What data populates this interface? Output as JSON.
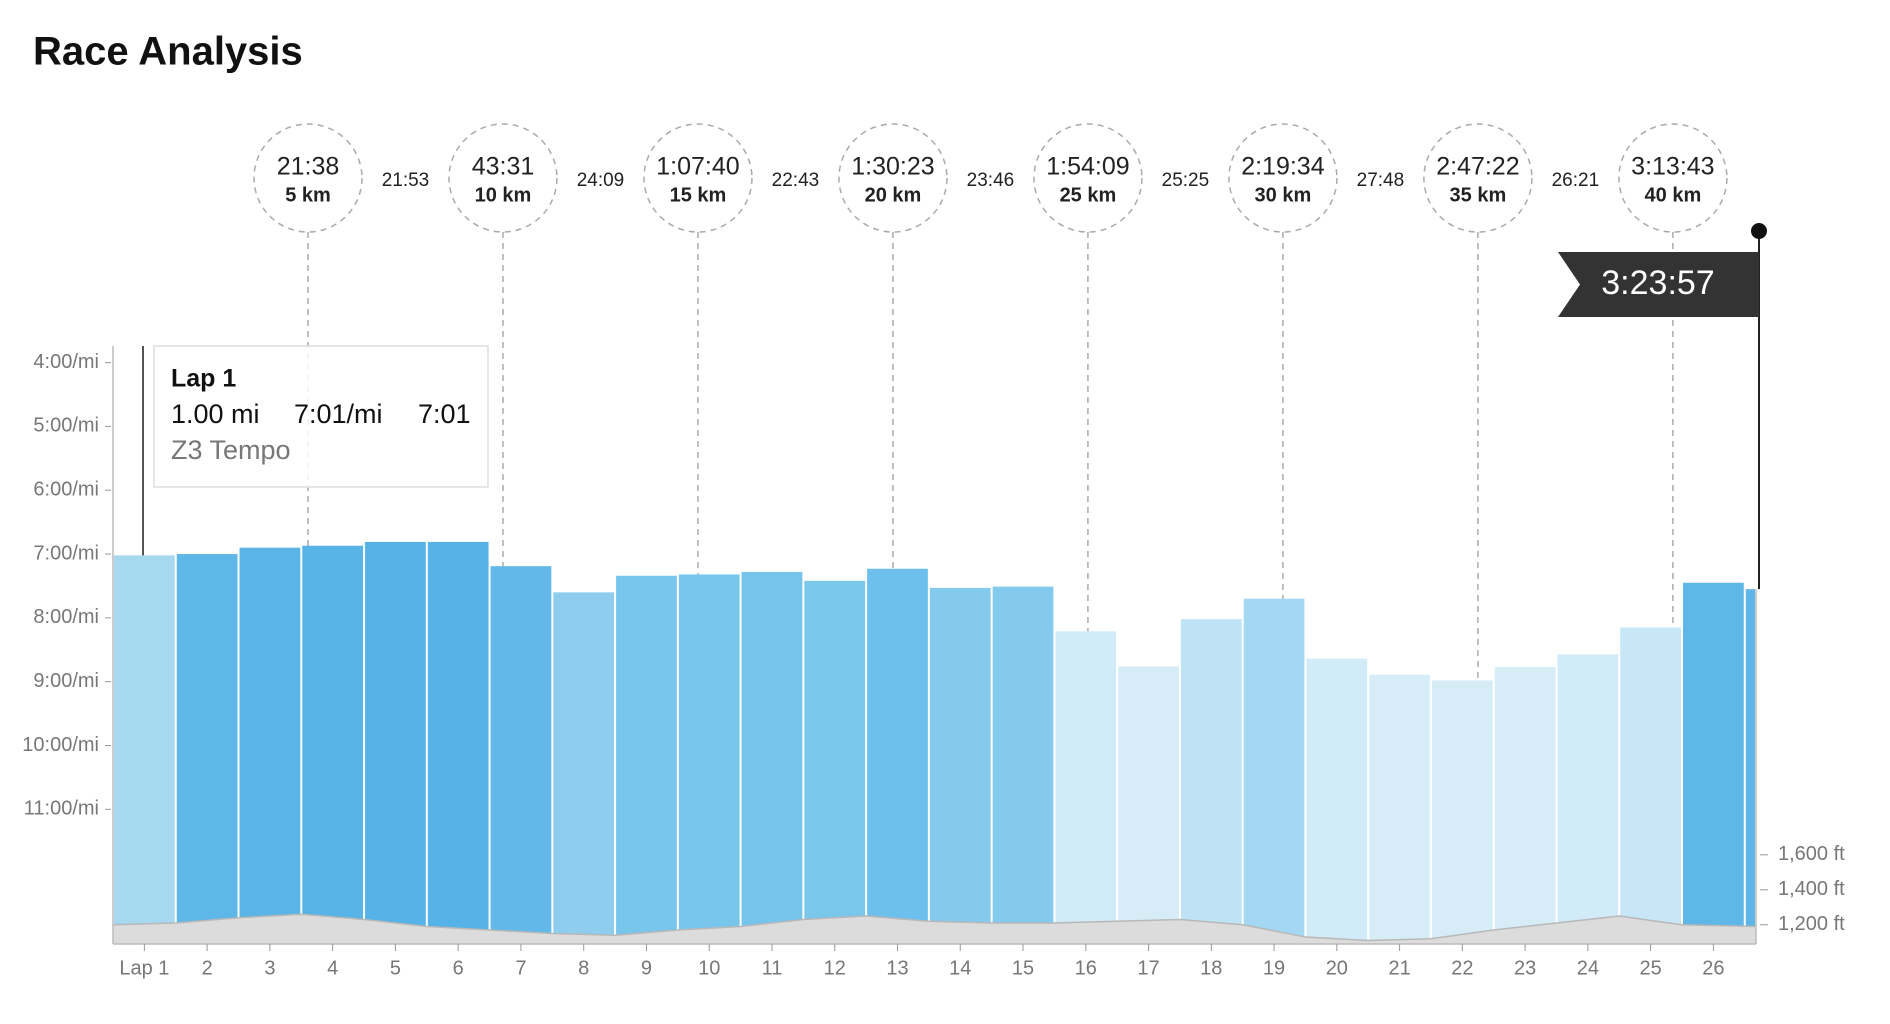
{
  "chart_data": {
    "type": "bar",
    "title": "Race Analysis",
    "categories": [
      "Lap 1",
      "2",
      "3",
      "4",
      "5",
      "6",
      "7",
      "8",
      "9",
      "10",
      "11",
      "12",
      "13",
      "14",
      "15",
      "16",
      "17",
      "18",
      "19",
      "20",
      "21",
      "22",
      "23",
      "24",
      "25",
      "26",
      null
    ],
    "series": [
      {
        "name": "Pace",
        "values": [
          7.02,
          7.0,
          6.9,
          6.87,
          6.81,
          6.81,
          7.19,
          7.6,
          7.34,
          7.32,
          7.28,
          7.42,
          7.23,
          7.53,
          7.51,
          8.21,
          8.76,
          8.02,
          7.7,
          8.64,
          8.89,
          8.98,
          8.77,
          8.57,
          8.15,
          7.45,
          7.55
        ],
        "colors": [
          "#a6d9f0",
          "#5fb7e7",
          "#5ab5e6",
          "#58b4e6",
          "#56b3e7",
          "#56b3e7",
          "#62b8e8",
          "#8fcdee",
          "#78c6ec",
          "#78c6ec",
          "#74c4ec",
          "#7ac7ec",
          "#6cc0eb",
          "#84caed",
          "#84caed",
          "#d2ebf8",
          "#d6edf8",
          "#bde3f5",
          "#a4d8f2",
          "#d2ebf8",
          "#d6edf8",
          "#d6edf8",
          "#d6edf8",
          "#d2ebf8",
          "#c7e7f7",
          "#5fb7e7",
          "#5fb7e7"
        ]
      },
      {
        "name": "Elevation",
        "axis": "y2",
        "color": "#dcdcdc",
        "values": [
          1200,
          1210,
          1240,
          1260,
          1230,
          1190,
          1170,
          1150,
          1140,
          1170,
          1190,
          1230,
          1250,
          1220,
          1210,
          1210,
          1220,
          1230,
          1200,
          1130,
          1110,
          1120,
          1170,
          1210,
          1250,
          1200,
          1190
        ]
      }
    ],
    "ylim": [
      3.74,
      13.11
    ],
    "yticks": [
      {
        "value": 4,
        "label": "4:00/mi"
      },
      {
        "value": 5,
        "label": "5:00/mi"
      },
      {
        "value": 6,
        "label": "6:00/mi"
      },
      {
        "value": 7,
        "label": "7:00/mi"
      },
      {
        "value": 8,
        "label": "8:00/mi"
      },
      {
        "value": 9,
        "label": "9:00/mi"
      },
      {
        "value": 10,
        "label": "10:00/mi"
      },
      {
        "value": 11,
        "label": "11:00/mi"
      }
    ],
    "y2lim": [
      1090,
      4510
    ],
    "y2ticks": [
      {
        "value": 1200,
        "label": "1,200 ft"
      },
      {
        "value": 1400,
        "label": "1,400 ft"
      },
      {
        "value": 1600,
        "label": "1,600 ft"
      }
    ],
    "splits": [
      {
        "time": "21:38",
        "label": "5 km"
      },
      {
        "time": "43:31",
        "label": "10 km"
      },
      {
        "time": "1:07:40",
        "label": "15 km"
      },
      {
        "time": "1:30:23",
        "label": "20 km"
      },
      {
        "time": "1:54:09",
        "label": "25 km"
      },
      {
        "time": "2:19:34",
        "label": "30 km"
      },
      {
        "time": "2:47:22",
        "label": "35 km"
      },
      {
        "time": "3:13:43",
        "label": "40 km"
      }
    ],
    "intervals": [
      "21:53",
      "24:09",
      "22:43",
      "23:46",
      "25:25",
      "27:48",
      "26:21"
    ],
    "finish": "3:23:57",
    "tooltip": {
      "title": "Lap 1",
      "distance": "1.00 mi",
      "pace": "7:01/mi",
      "time": "7:01",
      "zone": "Z3 Tempo"
    }
  }
}
